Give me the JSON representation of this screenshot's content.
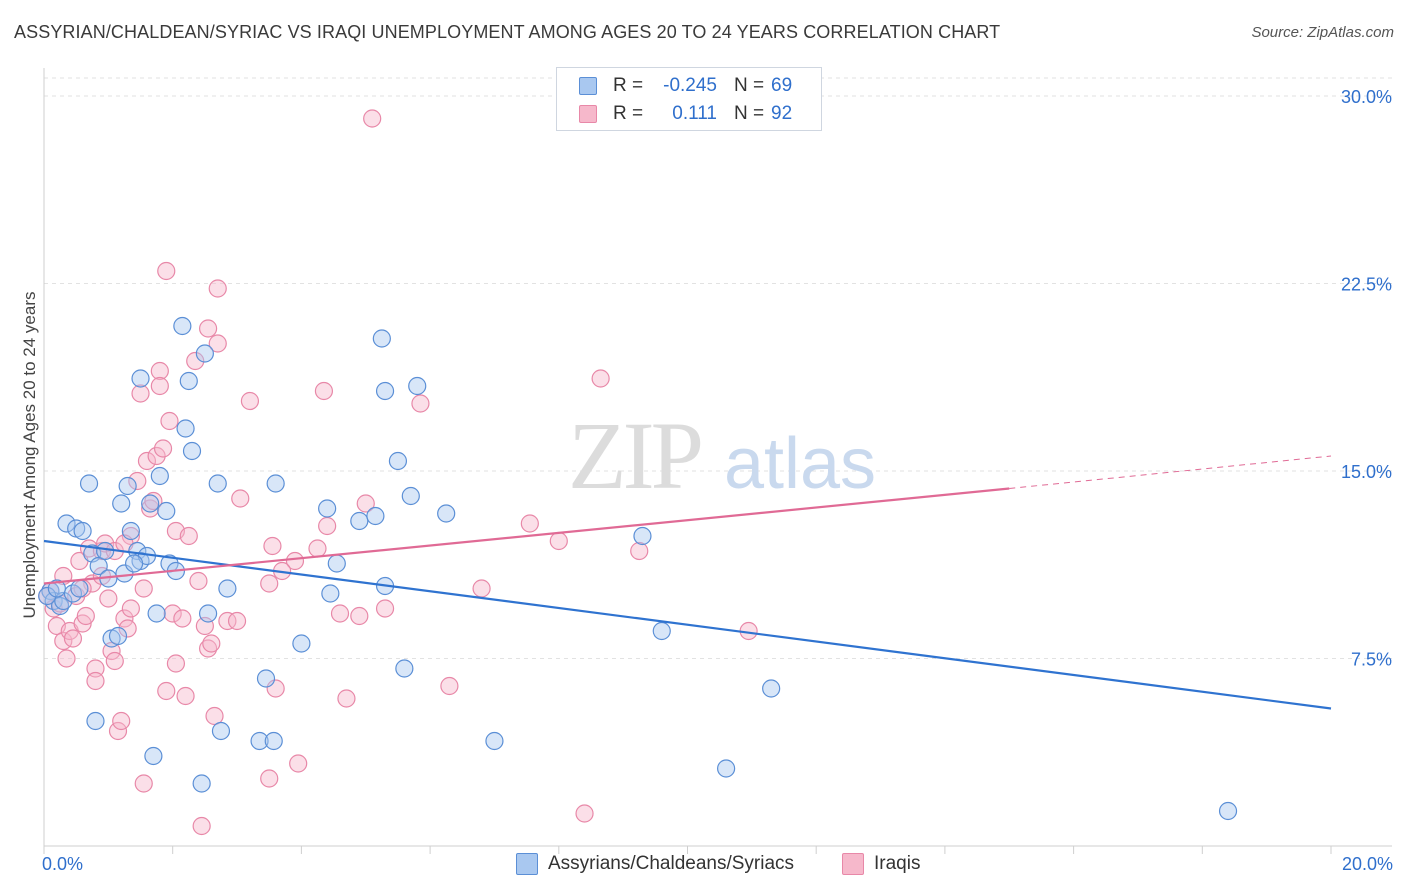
{
  "header": {
    "title": "ASSYRIAN/CHALDEAN/SYRIAC VS IRAQI UNEMPLOYMENT AMONG AGES 20 TO 24 YEARS CORRELATION CHART",
    "source": "Source: ZipAtlas.com"
  },
  "watermark": {
    "zip": "ZIP",
    "atlas": "atlas"
  },
  "stats": {
    "rows": [
      {
        "r_label": "R =",
        "r_value": "-0.245",
        "n_label": "N =",
        "n_value": "69"
      },
      {
        "r_label": "R =",
        "r_value": "0.111",
        "n_label": "N =",
        "n_value": "92"
      }
    ]
  },
  "legend": {
    "series1": "Assyrians/Chaldeans/Syriacs",
    "series2": "Iraqis"
  },
  "colors": {
    "blue_fill": "#a9c8f0",
    "blue_stroke": "#5b8fd6",
    "blue_line": "#2f73d0",
    "pink_fill": "#f6b8cb",
    "pink_stroke": "#e888a8",
    "pink_line": "#e06a95",
    "axis_text": "#2f6fcc"
  },
  "chart_data": {
    "type": "scatter",
    "title": "ASSYRIAN/CHALDEAN/SYRIAC VS IRAQI UNEMPLOYMENT AMONG AGES 20 TO 24 YEARS CORRELATION CHART",
    "xlabel": "",
    "ylabel": "Unemployment Among Ages 20 to 24 years",
    "xlim": [
      0,
      20
    ],
    "ylim": [
      0,
      30
    ],
    "x_tick_labels": [
      "0.0%",
      "20.0%"
    ],
    "y_ticks": [
      7.5,
      15.0,
      22.5,
      30.0
    ],
    "y_tick_labels": [
      "7.5%",
      "15.0%",
      "22.5%",
      "30.0%"
    ],
    "grid": "horizontal dashed",
    "series": [
      {
        "name": "Assyrians/Chaldeans/Syriacs",
        "color": "#a9c8f0",
        "trend": {
          "x": [
            0,
            20
          ],
          "y": [
            12.2,
            5.5
          ],
          "extrapolated_to": null
        },
        "points": [
          [
            0.1,
            10.2
          ],
          [
            0.15,
            9.8
          ],
          [
            0.25,
            9.6
          ],
          [
            0.3,
            9.8
          ],
          [
            0.35,
            12.9
          ],
          [
            0.45,
            10.1
          ],
          [
            0.5,
            12.7
          ],
          [
            0.55,
            10.3
          ],
          [
            0.6,
            12.6
          ],
          [
            0.7,
            14.5
          ],
          [
            0.75,
            11.7
          ],
          [
            0.8,
            5.0
          ],
          [
            0.85,
            11.2
          ],
          [
            0.95,
            11.8
          ],
          [
            1.0,
            10.7
          ],
          [
            1.05,
            8.3
          ],
          [
            1.15,
            8.4
          ],
          [
            1.2,
            13.7
          ],
          [
            1.25,
            10.9
          ],
          [
            1.3,
            14.4
          ],
          [
            1.35,
            12.6
          ],
          [
            1.45,
            11.8
          ],
          [
            1.5,
            11.4
          ],
          [
            1.5,
            18.7
          ],
          [
            1.6,
            11.6
          ],
          [
            1.65,
            13.7
          ],
          [
            1.7,
            3.6
          ],
          [
            1.75,
            9.3
          ],
          [
            1.8,
            14.8
          ],
          [
            1.9,
            13.4
          ],
          [
            1.95,
            11.3
          ],
          [
            2.05,
            11.0
          ],
          [
            2.15,
            20.8
          ],
          [
            2.2,
            16.7
          ],
          [
            2.25,
            18.6
          ],
          [
            2.3,
            15.8
          ],
          [
            2.45,
            2.5
          ],
          [
            2.5,
            19.7
          ],
          [
            2.55,
            9.3
          ],
          [
            2.7,
            14.5
          ],
          [
            2.75,
            4.6
          ],
          [
            2.85,
            10.3
          ],
          [
            3.35,
            4.2
          ],
          [
            3.45,
            6.7
          ],
          [
            3.57,
            4.2
          ],
          [
            3.6,
            14.5
          ],
          [
            4.0,
            8.1
          ],
          [
            4.4,
            13.5
          ],
          [
            4.45,
            10.1
          ],
          [
            4.55,
            11.3
          ],
          [
            4.9,
            13.0
          ],
          [
            5.15,
            13.2
          ],
          [
            5.25,
            20.3
          ],
          [
            5.3,
            18.2
          ],
          [
            5.3,
            10.4
          ],
          [
            5.5,
            15.4
          ],
          [
            5.6,
            7.1
          ],
          [
            5.7,
            14.0
          ],
          [
            5.8,
            18.4
          ],
          [
            6.25,
            13.3
          ],
          [
            7.0,
            4.2
          ],
          [
            9.3,
            12.4
          ],
          [
            9.6,
            8.6
          ],
          [
            10.6,
            3.1
          ],
          [
            11.3,
            6.3
          ],
          [
            18.4,
            1.4
          ],
          [
            0.05,
            10.0
          ],
          [
            0.2,
            10.3
          ],
          [
            1.4,
            11.3
          ]
        ]
      },
      {
        "name": "Iraqis",
        "color": "#f6b8cb",
        "trend": {
          "x": [
            0,
            15
          ],
          "y": [
            10.5,
            14.3
          ],
          "extrapolated_to": [
            20,
            15.6
          ]
        },
        "points": [
          [
            0.05,
            10.0
          ],
          [
            0.1,
            10.2
          ],
          [
            0.15,
            9.5
          ],
          [
            0.2,
            8.8
          ],
          [
            0.25,
            9.7
          ],
          [
            0.3,
            8.2
          ],
          [
            0.35,
            7.5
          ],
          [
            0.4,
            8.6
          ],
          [
            0.45,
            8.3
          ],
          [
            0.5,
            10.0
          ],
          [
            0.55,
            11.4
          ],
          [
            0.6,
            8.9
          ],
          [
            0.65,
            9.2
          ],
          [
            0.7,
            11.9
          ],
          [
            0.75,
            10.5
          ],
          [
            0.8,
            7.1
          ],
          [
            0.8,
            6.6
          ],
          [
            0.9,
            11.8
          ],
          [
            0.9,
            10.8
          ],
          [
            0.95,
            12.1
          ],
          [
            1.0,
            9.9
          ],
          [
            1.05,
            7.8
          ],
          [
            1.1,
            7.4
          ],
          [
            1.1,
            11.8
          ],
          [
            1.15,
            4.6
          ],
          [
            1.2,
            5.0
          ],
          [
            1.25,
            9.1
          ],
          [
            1.3,
            8.7
          ],
          [
            1.35,
            9.5
          ],
          [
            1.35,
            12.4
          ],
          [
            1.45,
            14.6
          ],
          [
            1.5,
            18.1
          ],
          [
            1.55,
            2.5
          ],
          [
            1.55,
            10.3
          ],
          [
            1.6,
            15.4
          ],
          [
            1.65,
            13.5
          ],
          [
            1.7,
            13.8
          ],
          [
            1.75,
            15.6
          ],
          [
            1.8,
            19.0
          ],
          [
            1.8,
            18.4
          ],
          [
            1.85,
            15.9
          ],
          [
            1.9,
            6.2
          ],
          [
            1.9,
            23.0
          ],
          [
            1.95,
            17.0
          ],
          [
            2.0,
            9.3
          ],
          [
            2.05,
            7.3
          ],
          [
            2.05,
            12.6
          ],
          [
            2.15,
            9.1
          ],
          [
            2.2,
            6.0
          ],
          [
            2.25,
            12.4
          ],
          [
            2.35,
            19.4
          ],
          [
            2.45,
            0.8
          ],
          [
            2.5,
            8.8
          ],
          [
            2.55,
            7.9
          ],
          [
            2.55,
            20.7
          ],
          [
            2.6,
            8.1
          ],
          [
            2.65,
            5.2
          ],
          [
            2.7,
            20.1
          ],
          [
            2.7,
            22.3
          ],
          [
            2.85,
            9.0
          ],
          [
            3.05,
            13.9
          ],
          [
            3.2,
            17.8
          ],
          [
            3.5,
            2.7
          ],
          [
            3.5,
            10.5
          ],
          [
            3.55,
            12.0
          ],
          [
            3.6,
            6.3
          ],
          [
            3.9,
            11.4
          ],
          [
            3.95,
            3.3
          ],
          [
            4.25,
            11.9
          ],
          [
            4.35,
            18.2
          ],
          [
            4.4,
            12.8
          ],
          [
            4.6,
            9.3
          ],
          [
            4.7,
            5.9
          ],
          [
            4.9,
            9.2
          ],
          [
            5.0,
            13.7
          ],
          [
            5.1,
            29.1
          ],
          [
            5.3,
            9.5
          ],
          [
            6.3,
            6.4
          ],
          [
            6.8,
            10.3
          ],
          [
            7.55,
            12.9
          ],
          [
            8.0,
            12.2
          ],
          [
            8.4,
            1.3
          ],
          [
            8.65,
            18.7
          ],
          [
            9.25,
            11.8
          ],
          [
            10.95,
            8.6
          ],
          [
            0.3,
            10.8
          ],
          [
            0.6,
            10.3
          ],
          [
            1.25,
            12.1
          ],
          [
            2.4,
            10.6
          ],
          [
            3.0,
            9.0
          ],
          [
            3.7,
            11.0
          ],
          [
            5.85,
            17.7
          ]
        ]
      }
    ]
  }
}
